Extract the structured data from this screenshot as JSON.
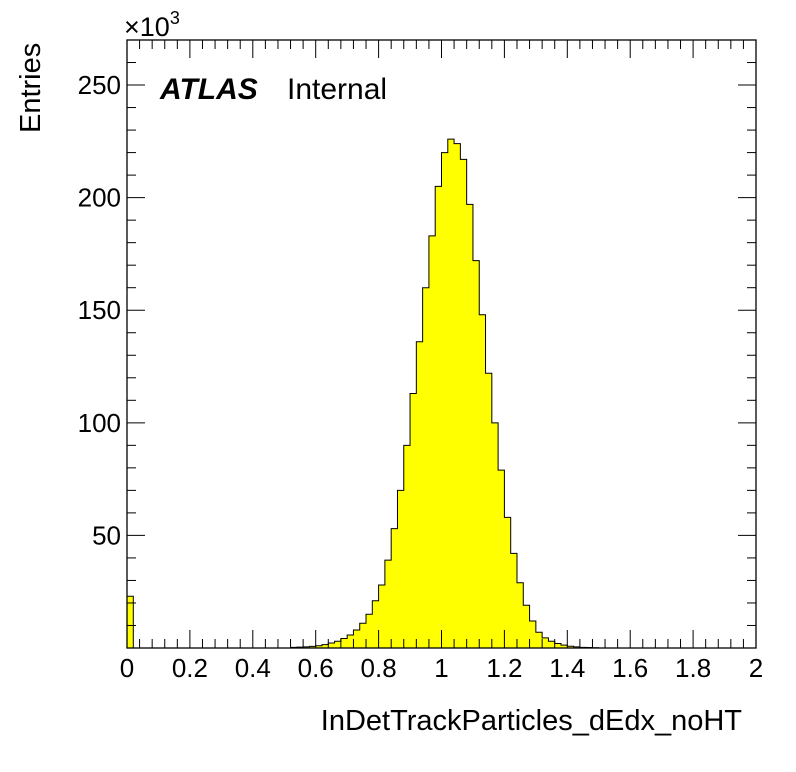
{
  "chart_data": {
    "type": "bar",
    "subtype": "histogram",
    "xlabel": "InDetTrackParticles_dEdx_noHT",
    "ylabel": "Entries",
    "y_multiplier_label": "×10",
    "y_multiplier_exponent": "3",
    "label_bold": "ATLAS",
    "label_normal": "Internal",
    "xlim": [
      0,
      2
    ],
    "ylim": [
      0,
      270
    ],
    "bin_width": 0.02,
    "x_ticks": [
      0,
      0.2,
      0.4,
      0.6,
      0.8,
      1,
      1.2,
      1.4,
      1.6,
      1.8,
      2
    ],
    "x_tick_labels": [
      "0",
      "0.2",
      "0.4",
      "0.6",
      "0.8",
      "1",
      "1.2",
      "1.4",
      "1.6",
      "1.8",
      "2"
    ],
    "y_ticks": [
      50,
      100,
      150,
      200,
      250
    ],
    "y_tick_labels": [
      "50",
      "100",
      "150",
      "200",
      "250"
    ],
    "fill_color": "#ffff00",
    "line_color": "#000000",
    "values": [
      23,
      0,
      0,
      0,
      0,
      0,
      0,
      0,
      0,
      0,
      0,
      0,
      0,
      0,
      0,
      0,
      0,
      0,
      0,
      0,
      0,
      0,
      0,
      0,
      0,
      0,
      0.3,
      0.4,
      0.5,
      0.7,
      1,
      1.5,
      2.2,
      3,
      4.2,
      5.8,
      8,
      11,
      15,
      21,
      28,
      39,
      53,
      70,
      90,
      113,
      136,
      160,
      183,
      205,
      220,
      226,
      224,
      217,
      197,
      172,
      148,
      122,
      100,
      79,
      58,
      42,
      29,
      19,
      12,
      7,
      4.5,
      3,
      2,
      1.3,
      0.8,
      0.5,
      0.3,
      0.2,
      0.1,
      0,
      0,
      0,
      0,
      0,
      0,
      0,
      0,
      0,
      0,
      0,
      0,
      0,
      0,
      0,
      0,
      0,
      0,
      0,
      0,
      0,
      0,
      0,
      0,
      0
    ]
  }
}
